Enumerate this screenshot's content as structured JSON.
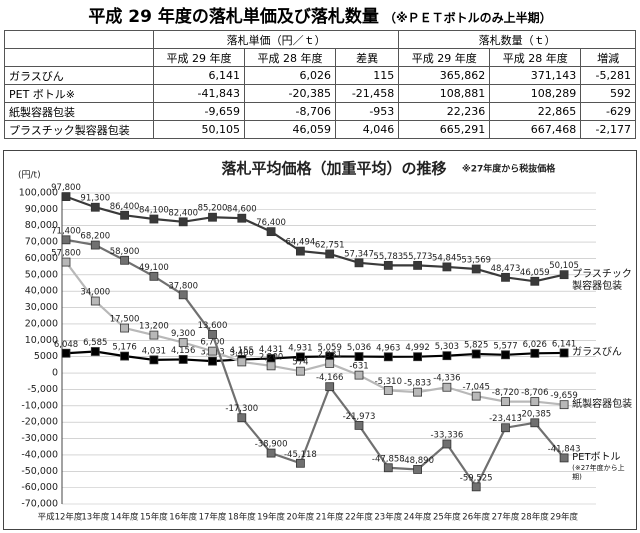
{
  "header": {
    "title": "平成 29 年度の落札単価及び落札数量",
    "subtitle": "（※ＰＥＴボトルのみ上半期）"
  },
  "table": {
    "groups": [
      "落札単価（円／ｔ）",
      "落札数量（ｔ）"
    ],
    "columns": [
      "平成 29 年度",
      "平成 28 年度",
      "差異",
      "平成 29 年度",
      "平成 28 年度",
      "増減"
    ],
    "rows": [
      [
        "ガラスびん",
        "6,141",
        "6,026",
        "115",
        "365,862",
        "371,143",
        "-5,281"
      ],
      [
        "PET ボトル※",
        "-41,843",
        "-20,385",
        "-21,458",
        "108,881",
        "108,289",
        "592"
      ],
      [
        "紙製容器包装",
        "-9,659",
        "-8,706",
        "-953",
        "22,236",
        "22,865",
        "-629"
      ],
      [
        "プラスチック製容器包装",
        "50,105",
        "46,059",
        "4,046",
        "665,291",
        "667,468",
        "-2,177"
      ]
    ]
  },
  "chart_data": {
    "type": "line",
    "title": "落札平均価格（加重平均）の推移",
    "note": "※27年度から税抜価格",
    "y_label": "(円/t)",
    "categories": [
      "平成12年度",
      "13年度",
      "14年度",
      "15年度",
      "16年度",
      "17年度",
      "18年度",
      "19年度",
      "20年度",
      "21年度",
      "22年度",
      "23年度",
      "24年度",
      "25年度",
      "26年度",
      "27年度",
      "28年度",
      "29年度"
    ],
    "ylim": [
      -70000,
      100000
    ],
    "yticks": [
      {
        "value": 100000,
        "label": "100,000"
      },
      {
        "value": 90000,
        "label": "90,000"
      },
      {
        "value": 80000,
        "label": "80,000"
      },
      {
        "value": 70000,
        "label": "70,000"
      },
      {
        "value": 60000,
        "label": "60,000"
      },
      {
        "value": 50000,
        "label": "50,000"
      },
      {
        "value": 40000,
        "label": "40,000"
      },
      {
        "value": 30000,
        "label": "30,000"
      },
      {
        "value": 20000,
        "label": "20,000"
      },
      {
        "value": 10000,
        "label": "10,000"
      },
      5000,
      0,
      {
        "value": -5000,
        "label": "-5,000"
      },
      {
        "value": -10000,
        "label": "-10,000"
      },
      {
        "value": -20000,
        "label": "-20,000"
      },
      {
        "value": -30000,
        "label": "-30,000"
      },
      {
        "value": -40000,
        "label": "-40,000"
      },
      {
        "value": -50000,
        "label": "-50,000"
      },
      {
        "value": -60000,
        "label": "-60,000"
      },
      {
        "value": -70000,
        "label": "-70,000"
      }
    ],
    "grid": true,
    "series": [
      {
        "name": "プラスチック製容器包装",
        "color": "#3a3a3a",
        "values": [
          97800,
          91300,
          86400,
          84100,
          82400,
          85200,
          84600,
          76400,
          64494,
          62751,
          57347,
          55783,
          55773,
          54845,
          53569,
          48473,
          46059,
          50105
        ],
        "value_labels": [
          "97,800",
          "91,300",
          "86,400",
          "84,100",
          "82,400",
          "85,200",
          "84,600",
          "76,400",
          "64,494",
          "62,751",
          "57,347",
          "55,783",
          "55,773",
          "54,845",
          "53,569",
          "48,473",
          "46,059",
          "50,105"
        ]
      },
      {
        "name": "ガラスびん",
        "color": "#000000",
        "values": [
          6048,
          6585,
          5176,
          4031,
          4156,
          3633,
          4155,
          4431,
          4931,
          5059,
          5036,
          4963,
          4992,
          5303,
          5825,
          5577,
          6026,
          6141
        ],
        "value_labels": [
          "6,048",
          "6,585",
          "5,176",
          "4,031",
          "4,156",
          "3,633",
          "4,155",
          "4,431",
          "4,931",
          "5,059",
          "5,036",
          "4,963",
          "4,992",
          "5,303",
          "5,825",
          "5,577",
          "6,026",
          "6,141"
        ]
      },
      {
        "name": "紙製容器包装",
        "color": "#b8b8b8",
        "values": [
          57800,
          34000,
          17500,
          13200,
          9300,
          6700,
          3400,
          2200,
          574,
          2931,
          -631,
          -5310,
          -5833,
          -4336,
          -7045,
          -8720,
          -8706,
          -9659
        ],
        "value_labels": [
          "57,800",
          "34,000",
          "17,500",
          "13,200",
          "9,300",
          "6,700",
          "3,400",
          "2,200",
          "574",
          "2,931",
          "-631",
          "-5,310",
          "-5,833",
          "-4,336",
          "-7,045",
          "-8,720",
          "-8,706",
          "-9,659"
        ]
      },
      {
        "name": "PETボトル",
        "note": "(※27年度から上期)",
        "color": "#707070",
        "values": [
          71400,
          68200,
          58900,
          49100,
          37800,
          13600,
          -17300,
          -38900,
          -45118,
          -4166,
          -21973,
          -47858,
          -48890,
          -33336,
          -59525,
          -23413,
          -20385,
          -41843
        ],
        "value_labels": [
          "71,400",
          "68,200",
          "58,900",
          "49,100",
          "37,800",
          "13,600",
          "-17,300",
          "-38,900",
          "-45,118",
          "-4,166",
          "-21,973",
          "-47,858",
          "-48,890",
          "-33,336",
          "-59,525",
          "-23,413",
          "-20,385",
          "-41,843"
        ]
      }
    ]
  }
}
